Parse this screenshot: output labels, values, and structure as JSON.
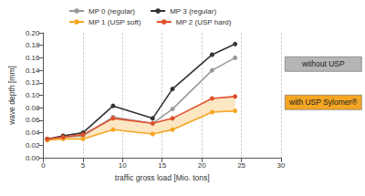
{
  "chart_data": {
    "type": "line",
    "x_label": "traffic gross load [Mio. tons]",
    "y_label": "wave depth [mm]",
    "x": [
      0.5,
      2.5,
      5,
      8.8,
      13.8,
      16.3,
      21.3,
      24.2
    ],
    "series": [
      {
        "name": "MP 0 (regular)",
        "color": "#9a9a9a",
        "values": [
          0.03,
          0.033,
          0.035,
          0.065,
          0.055,
          0.078,
          0.14,
          0.16
        ]
      },
      {
        "name": "MP 3 (regular)",
        "color": "#333333",
        "values": [
          0.03,
          0.035,
          0.04,
          0.083,
          0.063,
          0.11,
          0.165,
          0.182
        ]
      },
      {
        "name": "MP 1 (USP soft)",
        "color": "#f5a623",
        "values": [
          0.028,
          0.03,
          0.03,
          0.045,
          0.038,
          0.045,
          0.073,
          0.075
        ]
      },
      {
        "name": "MP 2 (USP hard)",
        "color": "#e0502a",
        "values": [
          0.03,
          0.033,
          0.037,
          0.063,
          0.055,
          0.063,
          0.095,
          0.098
        ]
      }
    ],
    "marker": "circle",
    "xlim": [
      0,
      30
    ],
    "xticks": [
      0,
      5,
      10,
      15,
      20,
      25,
      30
    ],
    "ylim": [
      0,
      0.2
    ],
    "yticks": [
      {
        "value": 0,
        "label": "0.00"
      },
      {
        "value": 0.02,
        "label": "0.02"
      },
      {
        "value": 0.04,
        "label": "0.04"
      },
      {
        "value": 0.06,
        "label": "0.06"
      },
      {
        "value": 0.08,
        "label": "0.08"
      },
      {
        "value": 0.1,
        "label": "0.10"
      },
      {
        "value": 0.12,
        "label": "0.12"
      },
      {
        "value": 0.14,
        "label": "0.14"
      },
      {
        "value": 0.16,
        "label": "0.16"
      },
      {
        "value": 0.18,
        "label": "0.18"
      },
      {
        "value": 0.2,
        "label": "0.20"
      }
    ],
    "grid": true,
    "legend": "top",
    "annotations": [
      {
        "text": "without USP",
        "color": "#b5b5b5"
      },
      {
        "text": "with USP Sylomer®",
        "color": "#f5a623"
      }
    ]
  }
}
